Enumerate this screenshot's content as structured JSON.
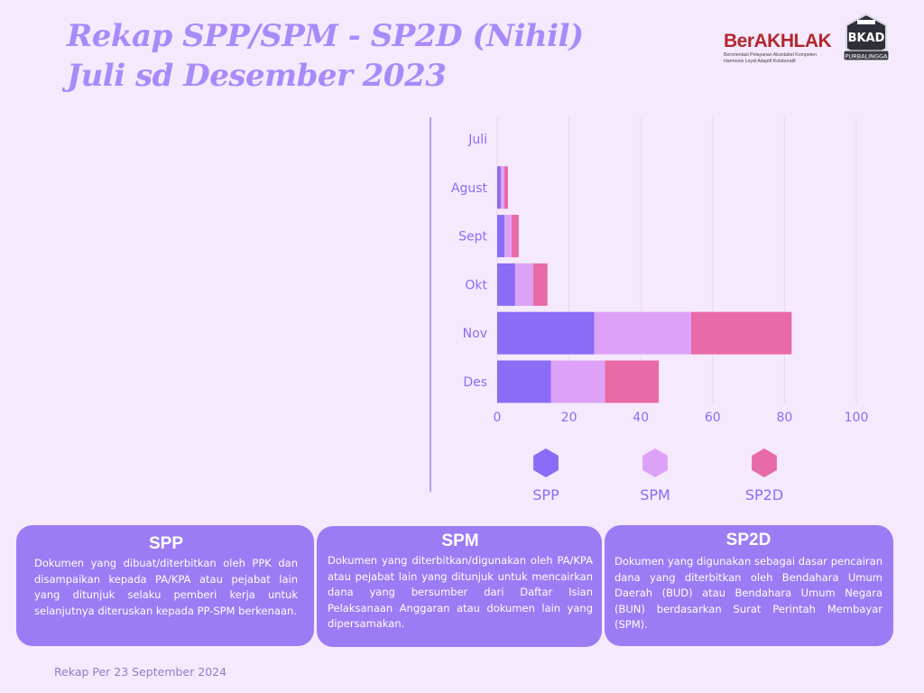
{
  "title": {
    "line1": "Rekap SPP/SPM - SP2D (Nihil)",
    "line2": "Juli sd Desember 2023"
  },
  "logos": {
    "berakhlak": {
      "word": "BerAKHLAK",
      "tagline1": "Berorientasi Pelayanan Akuntabel Kompeten",
      "tagline2": "Harmonis Loyal Adaptif Kolaboratif"
    },
    "bkad": {
      "label": "BKAD",
      "ribbon": "PURBALINGGA"
    }
  },
  "colors": {
    "spp": "#8b6cf6",
    "spm": "#dda2f7",
    "sp2d": "#e86aa8",
    "label": "#8b6cf6",
    "grid": "#ead7f6",
    "axis": "#9e8bd8"
  },
  "chart_data": {
    "type": "bar",
    "orientation": "horizontal",
    "stacked": true,
    "title": "Rekap SPP/SPM - SP2D (Nihil) Juli sd Desember 2023",
    "categories": [
      "Juli",
      "Agust",
      "Sept",
      "Okt",
      "Nov",
      "Des"
    ],
    "series": [
      {
        "name": "SPP",
        "values": [
          0,
          1,
          2,
          5,
          27,
          15
        ]
      },
      {
        "name": "SPM",
        "values": [
          0,
          1,
          2,
          5,
          27,
          15
        ]
      },
      {
        "name": "SP2D",
        "values": [
          0,
          1,
          2,
          4,
          28,
          15
        ]
      }
    ],
    "xlim": [
      0,
      100
    ],
    "xticks": [
      0,
      20,
      40,
      60,
      80,
      100
    ],
    "xlabel": "",
    "ylabel": "",
    "grid": true,
    "legend_position": "bottom"
  },
  "cards": {
    "spp": {
      "title": "SPP",
      "text": "Dokumen yang dibuat/diterbitkan oleh PPK dan disampaikan kepada PA/KPA atau pejabat lain yang ditunjuk selaku pemberi kerja untuk selanjutnya diteruskan kepada PP-SPM berkenaan."
    },
    "spm": {
      "title": "SPM",
      "text": "Dokumen yang diterbitkan/digunakan oleh PA/KPA atau pejabat lain yang ditunjuk untuk mencairkan dana yang bersumber dari Daftar Isian Pelaksanaan Anggaran atau dokumen lain yang dipersamakan."
    },
    "sp2d": {
      "title": "SP2D",
      "text": "Dokumen yang digunakan sebagai dasar pencairan dana yang diterbitkan oleh Bendahara Umum Daerah (BUD) atau Bendahara Umum Negara (BUN) berdasarkan Surat Perintah Membayar (SPM)."
    }
  },
  "footer": "Rekap Per 23 September 2024"
}
